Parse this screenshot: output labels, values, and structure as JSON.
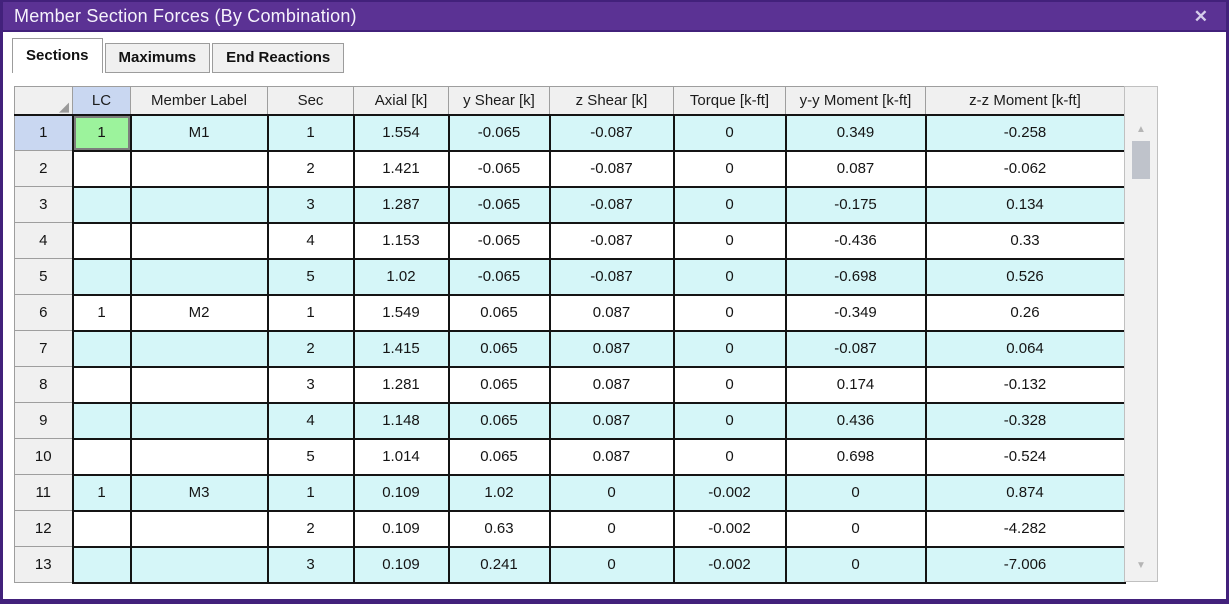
{
  "window": {
    "title": "Member Section Forces (By Combination)",
    "close_glyph": "✕"
  },
  "icons": {
    "close": "✕",
    "scroll_up": "▲",
    "scroll_down": "▼",
    "corner_resize": "◢"
  },
  "colors": {
    "titlebar": "#5b3294",
    "window_border": "#42217b",
    "header_bg": "#f0f0f0",
    "header_lc": "#c9d7f1",
    "row_alt": "#d5f6f8",
    "selected_cell": "#9cf39c",
    "selected_rownum": "#c9d7f1"
  },
  "tabs": [
    {
      "label": "Sections",
      "active": true
    },
    {
      "label": "Maximums",
      "active": false
    },
    {
      "label": "End Reactions",
      "active": false
    }
  ],
  "table": {
    "columns": [
      "LC",
      "Member Label",
      "Sec",
      "Axial [k]",
      "y Shear [k]",
      "z Shear [k]",
      "Torque [k-ft]",
      "y-y Moment [k-ft]",
      "z-z Moment [k-ft]"
    ],
    "rows": [
      {
        "num": "1",
        "lc": "1",
        "member": "M1",
        "sec": "1",
        "axial": "1.554",
        "y_shear": "-0.065",
        "z_shear": "-0.087",
        "torque": "0",
        "yy_moment": "0.349",
        "zz_moment": "-0.258",
        "selected": true
      },
      {
        "num": "2",
        "lc": "",
        "member": "",
        "sec": "2",
        "axial": "1.421",
        "y_shear": "-0.065",
        "z_shear": "-0.087",
        "torque": "0",
        "yy_moment": "0.087",
        "zz_moment": "-0.062",
        "selected": false
      },
      {
        "num": "3",
        "lc": "",
        "member": "",
        "sec": "3",
        "axial": "1.287",
        "y_shear": "-0.065",
        "z_shear": "-0.087",
        "torque": "0",
        "yy_moment": "-0.175",
        "zz_moment": "0.134",
        "selected": false
      },
      {
        "num": "4",
        "lc": "",
        "member": "",
        "sec": "4",
        "axial": "1.153",
        "y_shear": "-0.065",
        "z_shear": "-0.087",
        "torque": "0",
        "yy_moment": "-0.436",
        "zz_moment": "0.33",
        "selected": false
      },
      {
        "num": "5",
        "lc": "",
        "member": "",
        "sec": "5",
        "axial": "1.02",
        "y_shear": "-0.065",
        "z_shear": "-0.087",
        "torque": "0",
        "yy_moment": "-0.698",
        "zz_moment": "0.526",
        "selected": false
      },
      {
        "num": "6",
        "lc": "1",
        "member": "M2",
        "sec": "1",
        "axial": "1.549",
        "y_shear": "0.065",
        "z_shear": "0.087",
        "torque": "0",
        "yy_moment": "-0.349",
        "zz_moment": "0.26",
        "selected": false
      },
      {
        "num": "7",
        "lc": "",
        "member": "",
        "sec": "2",
        "axial": "1.415",
        "y_shear": "0.065",
        "z_shear": "0.087",
        "torque": "0",
        "yy_moment": "-0.087",
        "zz_moment": "0.064",
        "selected": false
      },
      {
        "num": "8",
        "lc": "",
        "member": "",
        "sec": "3",
        "axial": "1.281",
        "y_shear": "0.065",
        "z_shear": "0.087",
        "torque": "0",
        "yy_moment": "0.174",
        "zz_moment": "-0.132",
        "selected": false
      },
      {
        "num": "9",
        "lc": "",
        "member": "",
        "sec": "4",
        "axial": "1.148",
        "y_shear": "0.065",
        "z_shear": "0.087",
        "torque": "0",
        "yy_moment": "0.436",
        "zz_moment": "-0.328",
        "selected": false
      },
      {
        "num": "10",
        "lc": "",
        "member": "",
        "sec": "5",
        "axial": "1.014",
        "y_shear": "0.065",
        "z_shear": "0.087",
        "torque": "0",
        "yy_moment": "0.698",
        "zz_moment": "-0.524",
        "selected": false
      },
      {
        "num": "11",
        "lc": "1",
        "member": "M3",
        "sec": "1",
        "axial": "0.109",
        "y_shear": "1.02",
        "z_shear": "0",
        "torque": "-0.002",
        "yy_moment": "0",
        "zz_moment": "0.874",
        "selected": false
      },
      {
        "num": "12",
        "lc": "",
        "member": "",
        "sec": "2",
        "axial": "0.109",
        "y_shear": "0.63",
        "z_shear": "0",
        "torque": "-0.002",
        "yy_moment": "0",
        "zz_moment": "-4.282",
        "selected": false
      },
      {
        "num": "13",
        "lc": "",
        "member": "",
        "sec": "3",
        "axial": "0.109",
        "y_shear": "0.241",
        "z_shear": "0",
        "torque": "-0.002",
        "yy_moment": "0",
        "zz_moment": "-7.006",
        "selected": false
      }
    ]
  }
}
